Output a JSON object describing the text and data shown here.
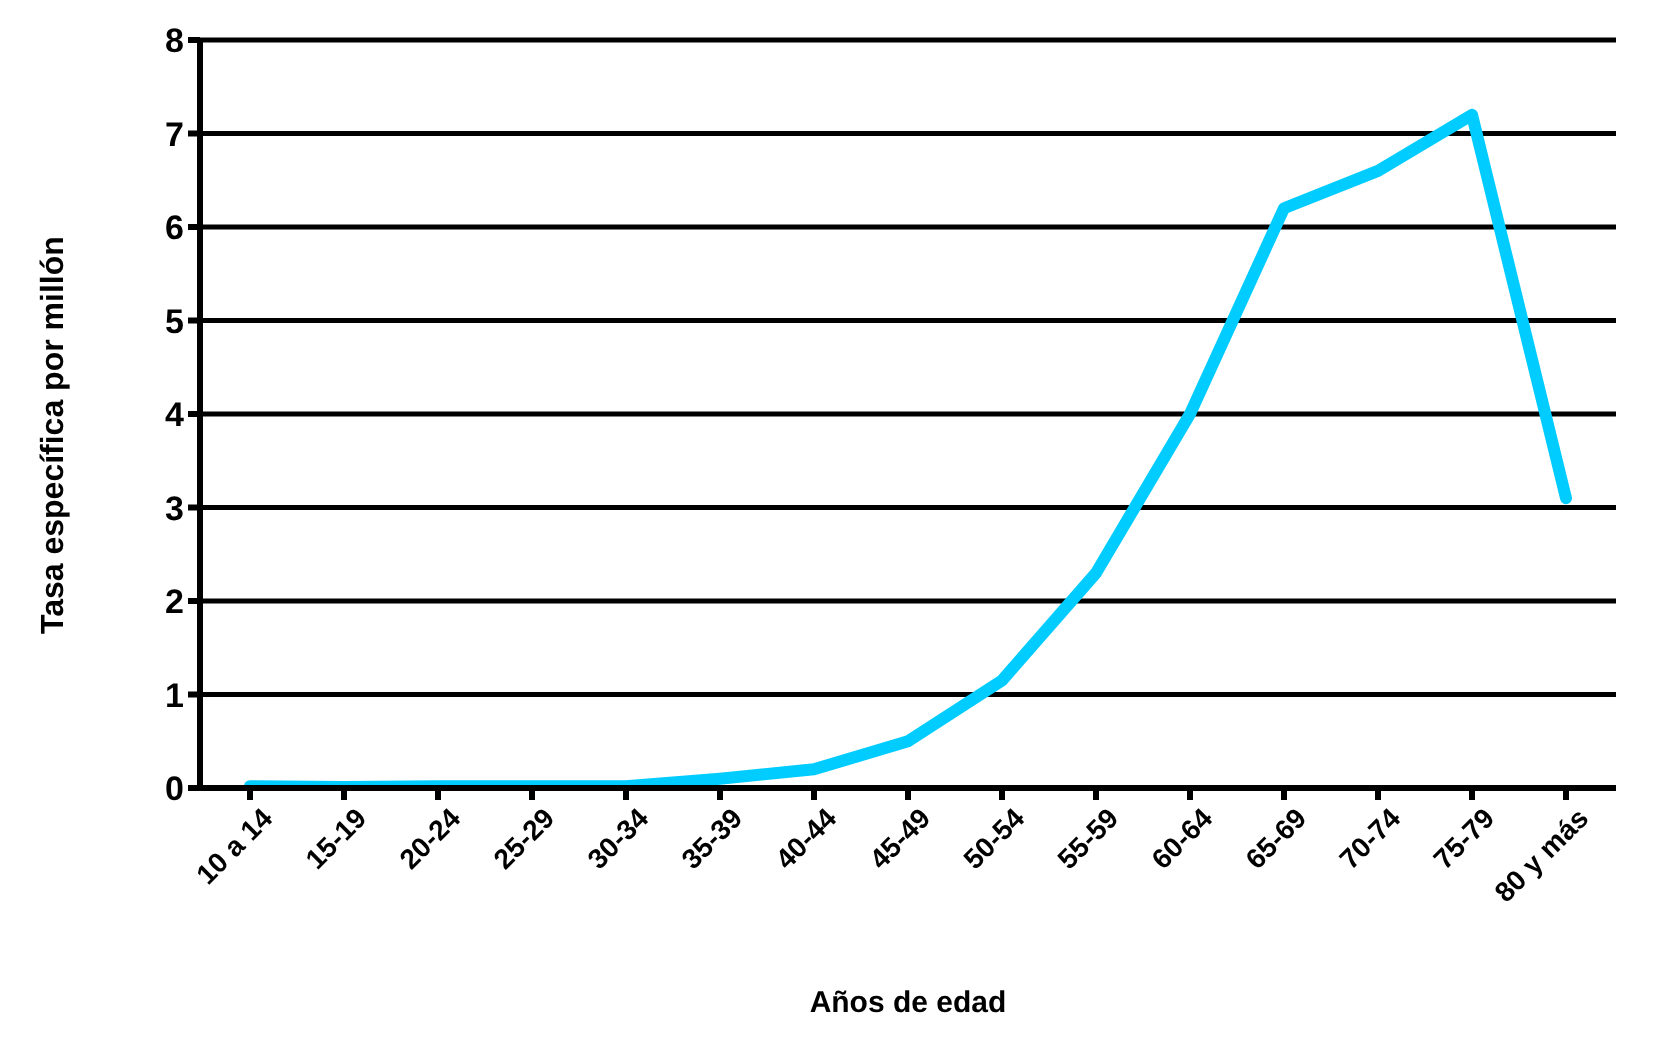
{
  "chart_data": {
    "type": "line",
    "xlabel": "Años  de edad",
    "ylabel": "Tasa específica  por millón",
    "categories": [
      "10 a 14",
      "15-19",
      "20-24",
      "25-29",
      "30-34",
      "35-39",
      "40-44",
      "45-49",
      "50-54",
      "55-59",
      "60-64",
      "65-69",
      "70-74",
      "75-79",
      "80 y más"
    ],
    "series": [
      {
        "color": "#00ccff",
        "values": [
          0.02,
          0.01,
          0.02,
          0.02,
          0.02,
          0.1,
          0.2,
          0.5,
          1.15,
          2.3,
          4.0,
          6.2,
          6.6,
          7.2,
          3.1
        ]
      }
    ],
    "ylim": [
      0,
      8
    ],
    "yticks": [
      0,
      1,
      2,
      3,
      4,
      5,
      6,
      7,
      8
    ],
    "grid": "y",
    "marker": "none",
    "line_style": "solid",
    "legend": false
  }
}
